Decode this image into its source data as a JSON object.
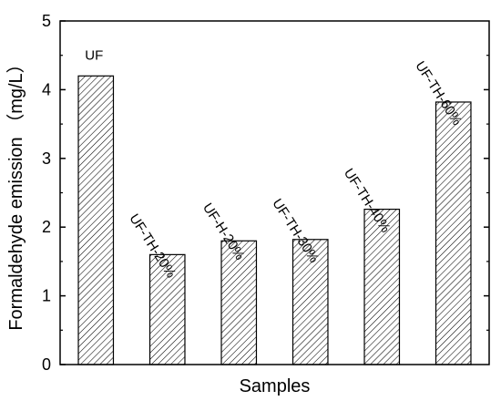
{
  "chart_data": {
    "type": "bar",
    "categories": [
      "UF",
      "UF-TH-20%",
      "UF-H-20%",
      "UF-TH-30%",
      "UF-TH-40%",
      "UF-TH-60%"
    ],
    "values": [
      4.2,
      1.6,
      1.8,
      1.82,
      2.26,
      3.82
    ],
    "xlabel": "Samples",
    "ylabel": "Formaldehyde emission （mg/L）",
    "ylim": [
      0,
      5
    ],
    "yticks": [
      "0",
      "1",
      "2",
      "3",
      "4",
      "5"
    ],
    "bar_fill": "diagonal-hatch",
    "colors": {
      "stroke": "#000000",
      "hatch": "#000000",
      "background": "#ffffff"
    },
    "grid": false,
    "legend": "none"
  }
}
